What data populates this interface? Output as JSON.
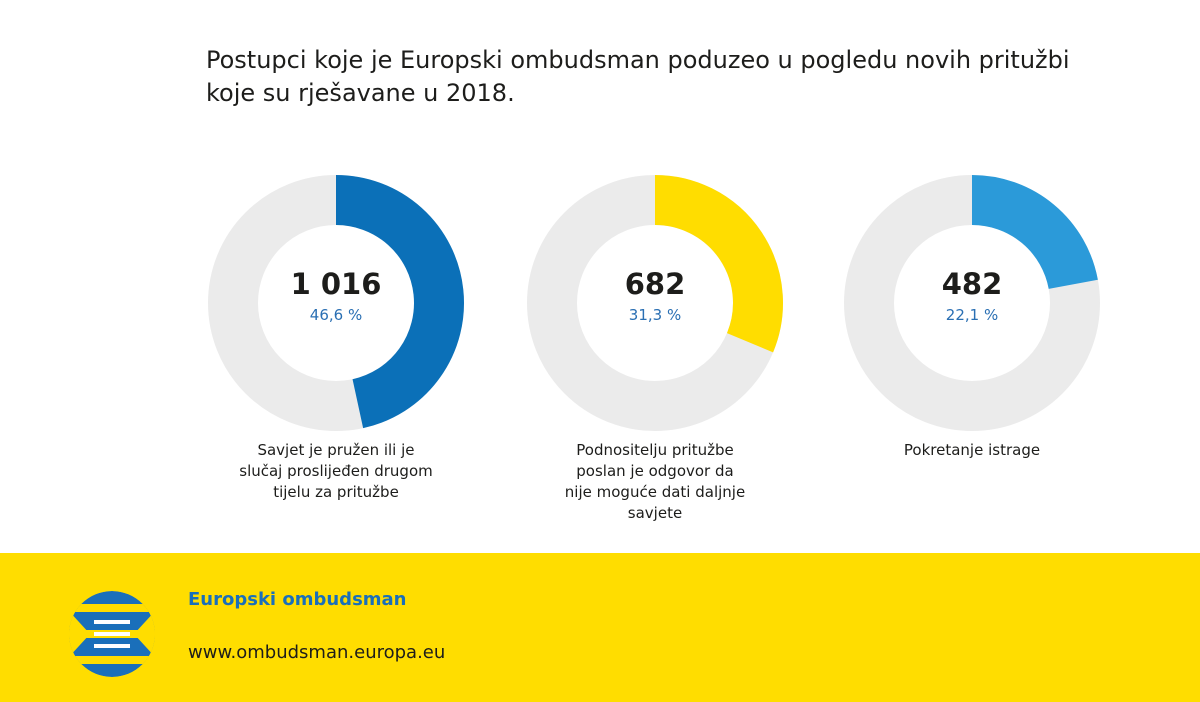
{
  "title": {
    "line1": "Postupci koje je Europski ombudsman poduzeo u pogledu novih pritužbi",
    "line2": "koje su rješavane u 2018."
  },
  "chart_data": {
    "type": "pie",
    "title": "Postupci koje je Europski ombudsman poduzeo u pogledu novih pritužbi koje su rješavane u 2018.",
    "track_color": "#ebebeb",
    "items": [
      {
        "value": 1016,
        "value_label": "1 016",
        "percent": 46.6,
        "percent_label": "46,6 %",
        "color": "#0b70b8",
        "label_lines": [
          "Savjet je pružen ili je",
          "slučaj proslijeđen drugom",
          "tijelu za pritužbe"
        ]
      },
      {
        "value": 682,
        "value_label": "682",
        "percent": 31.3,
        "percent_label": "31,3 %",
        "color": "#ffdd00",
        "label_lines": [
          "Podnositelju pritužbe",
          "poslan je odgovor da",
          "nije moguće dati daljnje",
          "savjete"
        ]
      },
      {
        "value": 482,
        "value_label": "482",
        "percent": 22.1,
        "percent_label": "22,1 %",
        "color": "#2b9ad9",
        "label_lines": [
          "Pokretanje istrage"
        ]
      }
    ]
  },
  "footer": {
    "org_name": "Europski ombudsman",
    "url": "www.ombudsman.europa.eu",
    "background": "#ffdd00",
    "logo_icon": "european-ombudsman-logo"
  }
}
